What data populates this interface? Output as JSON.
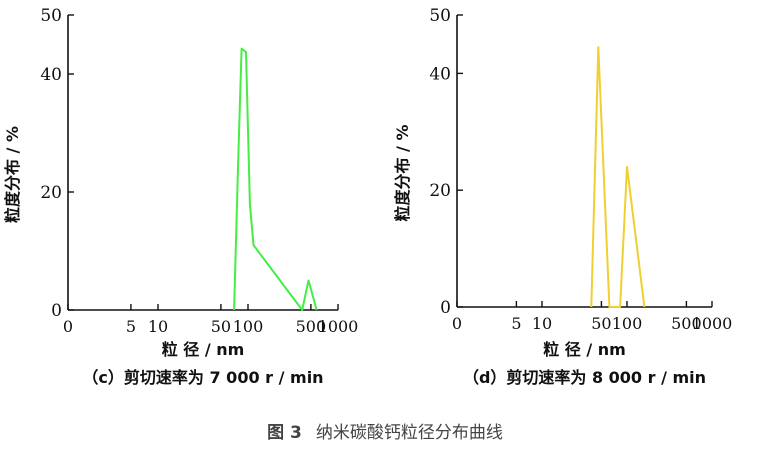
{
  "figure_caption": {
    "number": "图 3",
    "title": "纳米碳酸钙粒径分布曲线"
  },
  "colors": {
    "axis": "#111111",
    "series_c": "#44ee44",
    "series_d": "#f0d030"
  },
  "chart_data": [
    {
      "type": "line",
      "panel_label": "（c）剪切速率为 7 000 r / min",
      "xlabel": "粒  径 / nm",
      "ylabel": "粒度分布 / %",
      "x_scale": "log",
      "xlim": [
        1,
        1000
      ],
      "ylim": [
        0,
        50
      ],
      "x_ticks": [
        1,
        5,
        10,
        50,
        100,
        500,
        1000
      ],
      "x_tick_labels": [
        "0",
        "5",
        "10",
        "50",
        "100",
        "500",
        "1000"
      ],
      "y_ticks": [
        0,
        20,
        40,
        50
      ],
      "y_tick_labels": [
        "0",
        "20",
        "40",
        "50"
      ],
      "series": [
        {
          "x": [
            70,
            78,
            85,
            95,
            105,
            115,
            400,
            470,
            580
          ],
          "y": [
            0,
            26,
            44.3,
            43.7,
            18,
            11,
            0,
            5,
            0
          ]
        }
      ]
    },
    {
      "type": "line",
      "panel_label": "（d）剪切速率为 8 000 r / min",
      "xlabel": "粒  径 / nm",
      "ylabel": "粒度分布 / %",
      "x_scale": "log",
      "xlim": [
        1,
        1000
      ],
      "ylim": [
        0,
        50
      ],
      "x_ticks": [
        1,
        5,
        10,
        50,
        100,
        500,
        1000
      ],
      "x_tick_labels": [
        "0",
        "5",
        "10",
        "50",
        "100",
        "500",
        "1000"
      ],
      "y_ticks": [
        0,
        20,
        40,
        50
      ],
      "y_tick_labels": [
        "0",
        "20",
        "40",
        "50"
      ],
      "series": [
        {
          "x": [
            38,
            46,
            62,
            83,
            100,
            160
          ],
          "y": [
            0,
            44.5,
            0,
            0,
            24,
            0
          ]
        }
      ]
    }
  ]
}
